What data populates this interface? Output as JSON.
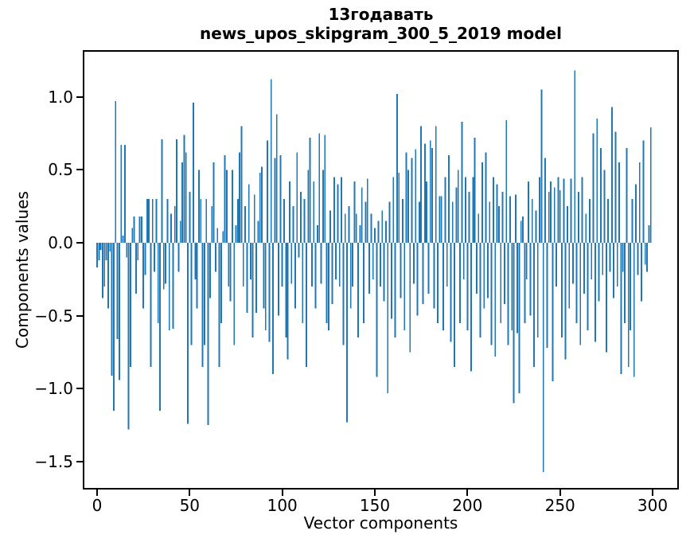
{
  "title": {
    "line1": "13годавать",
    "line2": "news_upos_skipgram_300_5_2019 model"
  },
  "chart_data": {
    "type": "bar",
    "title": "13годавать\nnews_upos_skipgram_300_5_2019 model",
    "xlabel": "Vector components",
    "ylabel": "Components values",
    "legend": "none",
    "grid": false,
    "bar_color": "#1f77b4",
    "axis_color": "#000000",
    "background_color": "#ffffff",
    "xlim": [
      -7.7,
      314.2
    ],
    "ylim": [
      -1.71,
      1.32
    ],
    "n_bars": 300,
    "x_ticks": [
      {
        "v": 0,
        "label": "0"
      },
      {
        "v": 50,
        "label": "50"
      },
      {
        "v": 100,
        "label": "100"
      },
      {
        "v": 150,
        "label": "150"
      },
      {
        "v": 200,
        "label": "200"
      },
      {
        "v": 250,
        "label": "250"
      },
      {
        "v": 300,
        "label": "300"
      }
    ],
    "y_ticks": [
      {
        "v": 1.0,
        "label": "1.0"
      },
      {
        "v": 0.5,
        "label": "0.5"
      },
      {
        "v": 0.0,
        "label": "0.0"
      },
      {
        "v": -0.5,
        "label": "−0.5"
      },
      {
        "v": -1.0,
        "label": "−1.0"
      },
      {
        "v": -1.5,
        "label": "−1.5"
      }
    ],
    "values": [
      -0.17,
      -0.12,
      -0.05,
      -0.38,
      -0.3,
      -0.12,
      -0.45,
      -0.06,
      -0.91,
      -1.15,
      0.97,
      -0.66,
      -0.94,
      0.67,
      0.05,
      0.67,
      -0.1,
      -1.28,
      -0.85,
      0.1,
      0.18,
      -0.35,
      -0.12,
      0.18,
      0.18,
      -0.45,
      -0.22,
      0.3,
      0.3,
      -0.85,
      0.3,
      -0.2,
      0.3,
      -0.55,
      -1.15,
      0.71,
      -0.32,
      -0.28,
      0.3,
      -0.6,
      0.2,
      -0.59,
      0.25,
      0.71,
      -0.2,
      0.15,
      0.55,
      0.74,
      0.62,
      -1.24,
      0.35,
      -0.7,
      0.96,
      -0.25,
      -0.45,
      0.5,
      0.3,
      -0.85,
      -0.7,
      0.3,
      -1.25,
      -0.38,
      0.25,
      0.55,
      -0.2,
      0.1,
      -0.85,
      -0.55,
      0.08,
      0.6,
      0.5,
      -0.3,
      -0.4,
      0.5,
      -0.7,
      0.12,
      0.3,
      0.62,
      0.8,
      -0.3,
      0.25,
      -0.48,
      0.4,
      -0.25,
      -0.65,
      0.33,
      -0.48,
      0.15,
      0.48,
      0.52,
      -0.45,
      -0.6,
      0.7,
      -0.68,
      1.12,
      -0.9,
      0.58,
      0.88,
      -0.5,
      0.6,
      -0.3,
      0.3,
      -0.65,
      -0.8,
      0.42,
      -0.28,
      0.25,
      -0.45,
      0.62,
      -0.1,
      0.35,
      -0.55,
      0.3,
      -0.85,
      0.5,
      0.72,
      -0.3,
      0.42,
      -0.45,
      0.12,
      0.75,
      -0.28,
      0.5,
      0.74,
      -0.55,
      -0.6,
      0.22,
      -0.42,
      0.45,
      -0.25,
      0.4,
      -0.3,
      0.45,
      -0.7,
      0.2,
      -1.23,
      0.25,
      -0.45,
      -0.3,
      0.42,
      0.2,
      -0.65,
      0.12,
      0.38,
      -0.55,
      0.28,
      0.44,
      -0.35,
      0.2,
      -0.25,
      0.1,
      -0.92,
      0.15,
      -0.3,
      0.22,
      -0.4,
      0.15,
      -1.03,
      0.28,
      -0.52,
      0.45,
      -0.65,
      1.02,
      0.48,
      -0.38,
      0.3,
      -0.6,
      0.62,
      0.5,
      -0.75,
      0.58,
      -0.28,
      0.64,
      -0.5,
      0.28,
      0.8,
      -0.42,
      0.68,
      0.42,
      -0.35,
      0.7,
      0.65,
      -0.45,
      0.8,
      -0.55,
      0.32,
      0.32,
      -0.6,
      0.45,
      -0.3,
      0.6,
      -0.68,
      0.28,
      -0.85,
      0.38,
      0.5,
      -0.55,
      0.83,
      -0.25,
      0.45,
      -0.6,
      0.35,
      -0.88,
      0.45,
      0.72,
      -0.35,
      0.2,
      -0.65,
      0.55,
      -0.45,
      0.62,
      -0.38,
      0.28,
      -0.7,
      0.45,
      -0.78,
      0.4,
      0.25,
      -0.55,
      0.35,
      -0.42,
      0.84,
      -0.7,
      0.32,
      -0.6,
      -1.1,
      0.33,
      -0.62,
      -1.03,
      0.15,
      0.18,
      -0.55,
      -0.25,
      0.42,
      -0.5,
      0.3,
      -0.85,
      0.22,
      -0.65,
      0.45,
      1.05,
      -1.57,
      0.58,
      -0.72,
      0.35,
      0.42,
      -0.95,
      0.38,
      -0.3,
      0.45,
      0.36,
      -0.65,
      0.44,
      -0.8,
      0.25,
      -0.45,
      0.44,
      -0.28,
      1.18,
      -0.55,
      0.35,
      -0.7,
      0.45,
      -0.35,
      0.2,
      -0.6,
      0.3,
      -0.25,
      0.75,
      -0.68,
      0.85,
      -0.4,
      0.65,
      -0.22,
      0.5,
      -0.75,
      0.3,
      -0.2,
      0.93,
      -0.38,
      0.76,
      -0.3,
      0.55,
      -0.9,
      -0.2,
      -0.55,
      0.65,
      -0.85,
      -0.6,
      0.3,
      -0.92,
      0.4,
      -0.22,
      0.55,
      -0.4,
      0.7,
      -0.15,
      -0.2,
      0.12,
      0.79
    ]
  }
}
